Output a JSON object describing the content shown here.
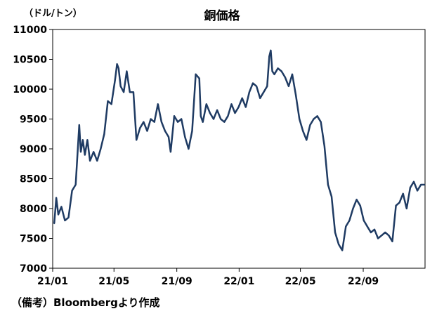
{
  "chart_data": {
    "type": "line",
    "title": "銅価格",
    "ylabel": "（ドル/トン）",
    "xlabel": "",
    "source": "（備考）Bloombergより作成",
    "ylim": [
      7000,
      11000
    ],
    "yticks": [
      "11000",
      "10500",
      "10000",
      "9500",
      "9000",
      "8500",
      "8000",
      "7500",
      "7000"
    ],
    "xticks": [
      "21/01",
      "21/05",
      "21/09",
      "22/01",
      "22/05",
      "22/09"
    ],
    "grid": false,
    "legend": "none",
    "line_color": "#1f3b63",
    "series": [
      {
        "x": [
          "2021-01-04",
          "2021-01-08",
          "2021-01-12",
          "2021-01-18",
          "2021-01-25",
          "2021-02-01",
          "2021-02-08",
          "2021-02-15",
          "2021-02-22",
          "2021-02-25",
          "2021-03-01",
          "2021-03-05",
          "2021-03-10",
          "2021-03-15",
          "2021-03-22",
          "2021-03-29",
          "2021-04-05",
          "2021-04-12",
          "2021-04-19",
          "2021-04-26",
          "2021-05-03",
          "2021-05-07",
          "2021-05-10",
          "2021-05-14",
          "2021-05-20",
          "2021-05-26",
          "2021-06-01",
          "2021-06-08",
          "2021-06-14",
          "2021-06-21",
          "2021-06-28",
          "2021-07-05",
          "2021-07-12",
          "2021-07-19",
          "2021-07-26",
          "2021-08-02",
          "2021-08-09",
          "2021-08-16",
          "2021-08-20",
          "2021-08-27",
          "2021-09-03",
          "2021-09-10",
          "2021-09-17",
          "2021-09-24",
          "2021-10-01",
          "2021-10-08",
          "2021-10-15",
          "2021-10-18",
          "2021-10-22",
          "2021-10-29",
          "2021-11-05",
          "2021-11-12",
          "2021-11-19",
          "2021-11-26",
          "2021-12-03",
          "2021-12-10",
          "2021-12-17",
          "2021-12-24",
          "2021-12-31",
          "2022-01-07",
          "2022-01-14",
          "2022-01-21",
          "2022-01-28",
          "2022-02-04",
          "2022-02-11",
          "2022-02-18",
          "2022-02-25",
          "2022-03-01",
          "2022-03-04",
          "2022-03-07",
          "2022-03-11",
          "2022-03-18",
          "2022-03-25",
          "2022-04-01",
          "2022-04-08",
          "2022-04-15",
          "2022-04-22",
          "2022-04-29",
          "2022-05-06",
          "2022-05-13",
          "2022-05-20",
          "2022-05-27",
          "2022-06-03",
          "2022-06-10",
          "2022-06-17",
          "2022-06-24",
          "2022-07-01",
          "2022-07-08",
          "2022-07-15",
          "2022-07-22",
          "2022-07-29",
          "2022-08-05",
          "2022-08-12",
          "2022-08-19",
          "2022-08-26",
          "2022-09-02",
          "2022-09-09",
          "2022-09-16",
          "2022-09-23",
          "2022-09-30",
          "2022-10-07",
          "2022-10-14",
          "2022-10-21",
          "2022-10-28",
          "2022-11-04",
          "2022-11-11",
          "2022-11-18",
          "2022-11-25",
          "2022-12-02",
          "2022-12-09",
          "2022-12-16",
          "2022-12-23",
          "2022-12-30"
        ],
        "y": [
          7750,
          8180,
          7900,
          8030,
          7800,
          7850,
          8300,
          8400,
          9400,
          8950,
          9150,
          8900,
          9150,
          8800,
          8950,
          8800,
          9000,
          9250,
          9800,
          9750,
          10150,
          10420,
          10350,
          10050,
          9950,
          10300,
          9950,
          9950,
          9150,
          9350,
          9450,
          9300,
          9500,
          9450,
          9750,
          9450,
          9300,
          9200,
          8950,
          9550,
          9450,
          9500,
          9200,
          9000,
          9300,
          10250,
          10180,
          9550,
          9450,
          9750,
          9600,
          9500,
          9650,
          9500,
          9450,
          9550,
          9750,
          9600,
          9700,
          9850,
          9700,
          9950,
          10100,
          10050,
          9850,
          9950,
          10050,
          10550,
          10650,
          10300,
          10250,
          10350,
          10300,
          10200,
          10050,
          10250,
          9900,
          9500,
          9300,
          9150,
          9400,
          9500,
          9550,
          9450,
          9050,
          8400,
          8200,
          7600,
          7400,
          7300,
          7700,
          7800,
          8000,
          8150,
          8050,
          7800,
          7700,
          7600,
          7650,
          7500,
          7550,
          7600,
          7550,
          7450,
          8050,
          8100,
          8250,
          8000,
          8350,
          8450,
          8300,
          8400,
          8400
        ]
      }
    ]
  }
}
